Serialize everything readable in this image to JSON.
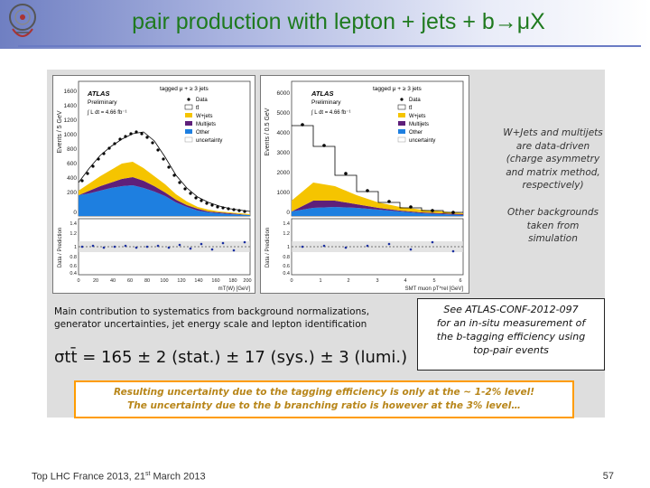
{
  "slide": {
    "title": "pair production with lepton + jets + b→μX",
    "logo_icon": "lhc-france-logo-icon",
    "accent_color": "#1f7a1f"
  },
  "plots": {
    "left": {
      "experiment": "ATLAS",
      "status": "Preliminary",
      "channel": "tagged μ + ≥ 3 jets",
      "lumi": "∫ L dt = 4.66 fb⁻¹",
      "ylabel": "Events / 5 GeV",
      "ratio_label": "Data / Prediction",
      "xlabel": "mT(W) [GeV]",
      "y_ticks": [
        "0",
        "200",
        "400",
        "600",
        "800",
        "1000",
        "1200",
        "1400",
        "1600"
      ],
      "x_ticks": [
        "0",
        "20",
        "40",
        "60",
        "80",
        "100",
        "120",
        "140",
        "160",
        "180",
        "200"
      ],
      "ratio_ticks": [
        "0.4",
        "0.6",
        "0.8",
        "1",
        "1.2",
        "1.4"
      ]
    },
    "right": {
      "experiment": "ATLAS",
      "status": "Preliminary",
      "channel": "tagged μ + ≥ 3 jets",
      "lumi": "∫ L dt = 4.66 fb⁻¹",
      "ylabel": "Events / 0.5 GeV",
      "ratio_label": "Data / Prediction",
      "xlabel": "SMT muon pT^rel [GeV]",
      "y_ticks": [
        "0",
        "1000",
        "2000",
        "3000",
        "4000",
        "5000",
        "6000"
      ],
      "x_ticks": [
        "0",
        "1",
        "2",
        "3",
        "4",
        "5",
        "6"
      ],
      "ratio_ticks": [
        "0.4",
        "0.6",
        "0.8",
        "1",
        "1.2",
        "1.4"
      ]
    },
    "legend": [
      "Data",
      "tt̄",
      "W+jets",
      "Multijets",
      "Other",
      "uncertainty"
    ],
    "colors": {
      "data": "#000000",
      "ttbar": "#ffffff",
      "wjets": "#f5c400",
      "multijets": "#5e1f7a",
      "other": "#1e7fe0",
      "uncertainty": "#999999"
    }
  },
  "notes": {
    "right_note_1": "W+Jets and multijets are data-driven (charge asymmetry and matrix method, respectively)",
    "right_note_2": "Other backgrounds taken from simulation"
  },
  "systematics": {
    "line1": "Main contribution to systematics from background normalizations,",
    "line2": "generator uncertainties, jet energy scale and lepton identification",
    "result": "σtt̄ = 165 ± 2 (stat.) ± 17 (sys.) ± 3 (lumi.)"
  },
  "conf_box": {
    "line1": "See ATLAS-CONF-2012-097",
    "line2": "for an in-situ measurement of",
    "line3": "the b-tagging efficiency using",
    "line4": "top-pair events"
  },
  "highlight": {
    "line1": "Resulting uncertainty due to the tagging efficiency is only at the ~ 1-2% level!",
    "line2": "The uncertainty due to the b branching ratio is however at the 3% level…"
  },
  "footer": {
    "left_prefix": "Top LHC France 2013, 21",
    "left_sup": "st",
    "left_suffix": " March 2013",
    "page": "57"
  }
}
